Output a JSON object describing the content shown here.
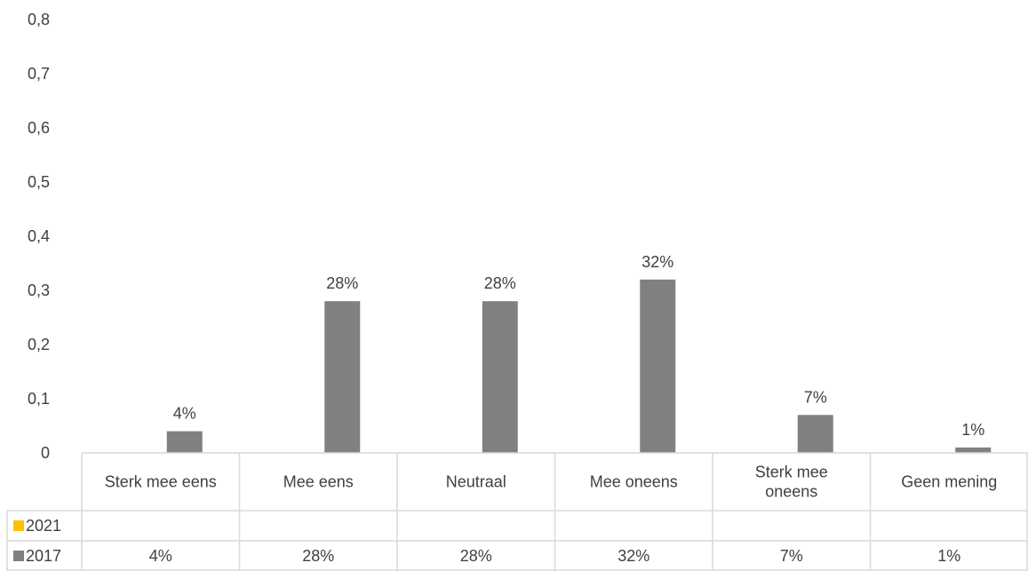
{
  "chart_data": {
    "type": "bar",
    "categories": [
      "Sterk mee eens",
      "Mee eens",
      "Neutraal",
      "Mee oneens",
      "Sterk mee oneens",
      "Geen mening"
    ],
    "category_lines": [
      [
        "Sterk mee eens"
      ],
      [
        "Mee eens"
      ],
      [
        "Neutraal"
      ],
      [
        "Mee oneens"
      ],
      [
        "Sterk mee",
        "oneens"
      ],
      [
        "Geen mening"
      ]
    ],
    "series": [
      {
        "name": "2021",
        "color": "#FFC000",
        "values": [
          null,
          null,
          null,
          null,
          null,
          null
        ],
        "labels": [
          "",
          "",
          "",
          "",
          "",
          ""
        ]
      },
      {
        "name": "2017",
        "color": "#808080",
        "values": [
          0.04,
          0.28,
          0.28,
          0.32,
          0.07,
          0.01
        ],
        "labels": [
          "4%",
          "28%",
          "28%",
          "32%",
          "7%",
          "1%"
        ]
      }
    ],
    "y_ticks": [
      "0",
      "0,1",
      "0,2",
      "0,3",
      "0,4",
      "0,5",
      "0,6",
      "0,7",
      "0,8"
    ],
    "ylim": [
      0,
      0.8
    ],
    "legend": "data-table"
  }
}
